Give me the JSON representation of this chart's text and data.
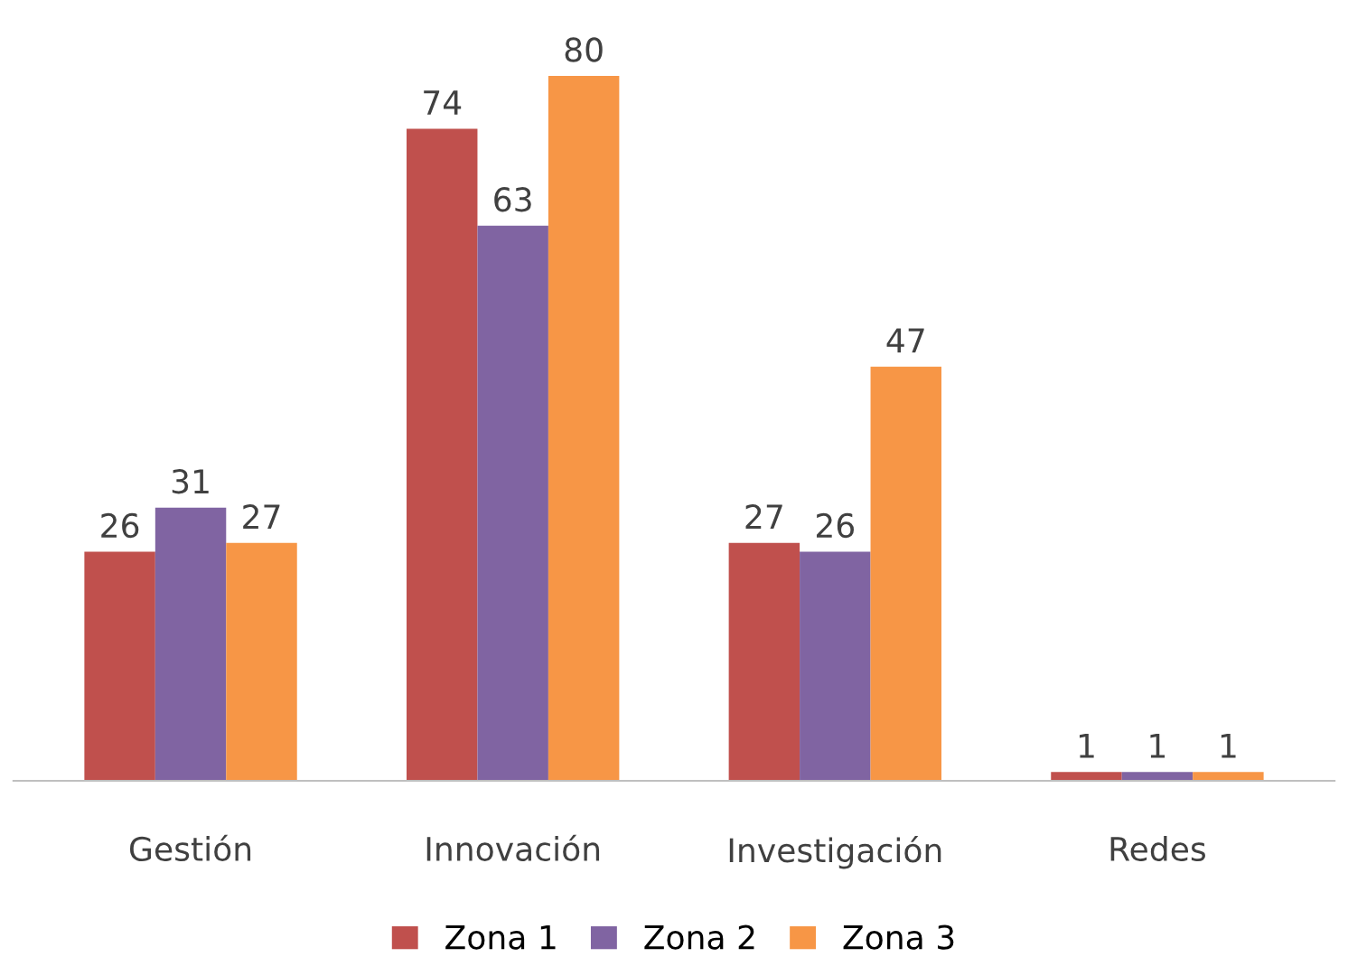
{
  "chart_data": {
    "type": "bar",
    "categories": [
      "Gestión",
      "Innovación",
      "Investigación",
      "Redes"
    ],
    "series": [
      {
        "name": "Zona 1",
        "color": "#c0504d",
        "values": [
          26,
          74,
          27,
          1
        ]
      },
      {
        "name": "Zona 2",
        "color": "#8064a2",
        "values": [
          31,
          63,
          26,
          1
        ]
      },
      {
        "name": "Zona 3",
        "color": "#f79646",
        "values": [
          27,
          80,
          47,
          1
        ]
      }
    ],
    "data_labels": true,
    "legend": "bottom",
    "grid": false
  }
}
